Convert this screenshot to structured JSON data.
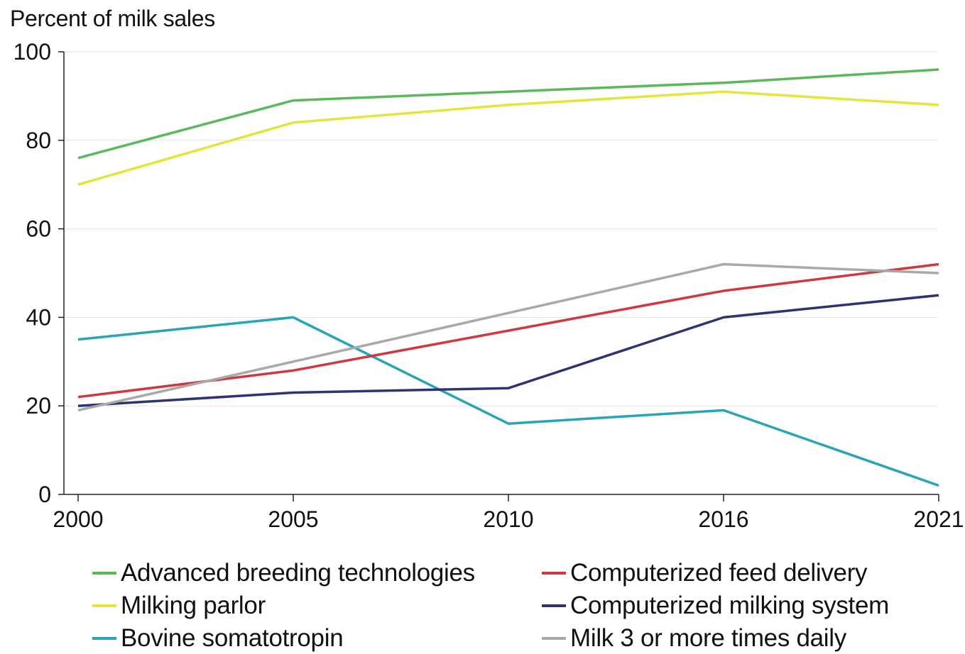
{
  "chart_data": {
    "type": "line",
    "title": "",
    "ylabel": "Percent of milk sales",
    "xlabel": "",
    "categories": [
      "2000",
      "2005",
      "2010",
      "2016",
      "2021"
    ],
    "ylim": [
      0,
      100
    ],
    "yticks": [
      0,
      20,
      40,
      60,
      80,
      100
    ],
    "grid": true,
    "legend_position": "bottom",
    "series": [
      {
        "name": "Advanced breeding technologies",
        "color": "#5cb85c",
        "values": [
          76,
          89,
          91,
          93,
          96
        ]
      },
      {
        "name": "Milking parlor",
        "color": "#e4e43a",
        "values": [
          70,
          84,
          88,
          91,
          88
        ]
      },
      {
        "name": "Bovine somatotropin",
        "color": "#27a5b4",
        "values": [
          35,
          40,
          16,
          19,
          2
        ]
      },
      {
        "name": "Computerized feed delivery",
        "color": "#cc3a3f",
        "values": [
          22,
          28,
          37,
          46,
          52
        ]
      },
      {
        "name": "Computerized milking system",
        "color": "#2e3472",
        "values": [
          20,
          23,
          24,
          40,
          45
        ]
      },
      {
        "name": "Milk 3 or more times daily",
        "color": "#a9a9a9",
        "values": [
          19,
          30,
          41,
          52,
          50
        ]
      }
    ]
  }
}
